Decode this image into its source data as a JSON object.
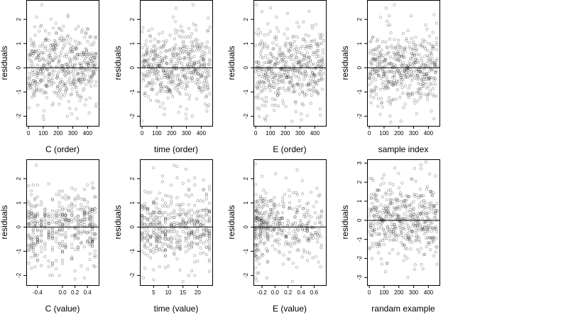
{
  "figure": {
    "title": ""
  },
  "chart_data": [
    {
      "type": "scatter",
      "id": "p1",
      "xlabel": "C (order)",
      "ylabel": "residuals",
      "xlim": [
        -15,
        475
      ],
      "ylim": [
        -2.4,
        2.8
      ],
      "xticks": [
        0,
        100,
        200,
        300,
        400
      ],
      "xtick_labels": [
        "0",
        "100",
        "200",
        "300",
        "400"
      ],
      "yticks": [
        -2,
        -1,
        0,
        1,
        2
      ],
      "ytick_labels": [
        "-2",
        "-1",
        "0",
        "1",
        "2"
      ],
      "reference_line_y": 0,
      "series": [
        {
          "n": 460,
          "x_range": [
            0,
            460
          ],
          "y_sd": 0.75,
          "seed": 11,
          "pattern": "order",
          "points": [
            [
              90,
              2.6
            ],
            [
              55,
              2.1
            ],
            [
              30,
              0.7
            ],
            [
              35,
              0.6
            ],
            [
              40,
              0.65
            ],
            [
              100,
              -2.0
            ],
            [
              330,
              -2.1
            ],
            [
              455,
              -1.6
            ],
            [
              460,
              -1.5
            ],
            [
              320,
              1.6
            ],
            [
              385,
              1.45
            ]
          ]
        }
      ]
    },
    {
      "type": "scatter",
      "id": "p2",
      "xlabel": "time (order)",
      "ylabel": "residuals",
      "xlim": [
        -15,
        475
      ],
      "ylim": [
        -2.4,
        2.8
      ],
      "xticks": [
        0,
        100,
        200,
        300,
        400
      ],
      "xtick_labels": [
        "0",
        "100",
        "200",
        "300",
        "400"
      ],
      "yticks": [
        -2,
        -1,
        0,
        1,
        2
      ],
      "ytick_labels": [
        "-2",
        "-1",
        "0",
        "1",
        "2"
      ],
      "reference_line_y": 0,
      "series": [
        {
          "n": 460,
          "x_range": [
            0,
            460
          ],
          "y_sd": 0.75,
          "seed": 23,
          "pattern": "order",
          "points": [
            [
              345,
              2.6
            ],
            [
              210,
              2.1
            ],
            [
              0,
              -2.2
            ],
            [
              300,
              -2.1
            ],
            [
              340,
              -2.0
            ],
            [
              440,
              -1.6
            ],
            [
              115,
              1.4
            ]
          ]
        }
      ]
    },
    {
      "type": "scatter",
      "id": "p3",
      "xlabel": "E (order)",
      "ylabel": "residuals",
      "xlim": [
        -15,
        475
      ],
      "ylim": [
        -2.4,
        2.8
      ],
      "xticks": [
        0,
        100,
        200,
        300,
        400
      ],
      "xtick_labels": [
        "0",
        "100",
        "200",
        "300",
        "400"
      ],
      "yticks": [
        -2,
        -1,
        0,
        1,
        2
      ],
      "ytick_labels": [
        "-2",
        "-1",
        "0",
        "1",
        "2"
      ],
      "reference_line_y": 0,
      "series": [
        {
          "n": 460,
          "x_range": [
            0,
            460
          ],
          "y_sd": 0.8,
          "seed": 37,
          "pattern": "order",
          "points": [
            [
              5,
              2.6
            ],
            [
              140,
              2.1
            ],
            [
              60,
              -2.1
            ],
            [
              75,
              -2.0
            ],
            [
              25,
              -1.7
            ],
            [
              20,
              1.6
            ],
            [
              260,
              1.3
            ]
          ]
        }
      ]
    },
    {
      "type": "scatter",
      "id": "p4",
      "xlabel": "sample index",
      "ylabel": "residuals",
      "xlim": [
        -15,
        475
      ],
      "ylim": [
        -2.4,
        2.8
      ],
      "xticks": [
        0,
        100,
        200,
        300,
        400
      ],
      "xtick_labels": [
        "0",
        "100",
        "200",
        "300",
        "400"
      ],
      "yticks": [
        -2,
        -1,
        0,
        1,
        2
      ],
      "ytick_labels": [
        "-2",
        "-1",
        "0",
        "1",
        "2"
      ],
      "reference_line_y": 0,
      "series": [
        {
          "n": 460,
          "x_range": [
            0,
            460
          ],
          "y_sd": 0.75,
          "seed": 41,
          "pattern": "order",
          "points": [
            [
              170,
              2.6
            ],
            [
              135,
              2.15
            ],
            [
              215,
              -2.2
            ],
            [
              320,
              -1.9
            ],
            [
              5,
              0.6
            ],
            [
              10,
              0.7
            ],
            [
              390,
              1.6
            ]
          ]
        }
      ]
    },
    {
      "type": "scatter",
      "id": "p5",
      "xlabel": "C (value)",
      "ylabel": "residuals",
      "xlim": [
        -0.58,
        0.58
      ],
      "ylim": [
        -2.4,
        2.8
      ],
      "xticks": [
        -0.4,
        0.0,
        0.2,
        0.4
      ],
      "xtick_labels": [
        "-0.4",
        "0.0",
        "0.2",
        "0.4"
      ],
      "yticks": [
        -2,
        -1,
        0,
        1,
        2
      ],
      "ytick_labels": [
        "-2",
        "-1",
        "0",
        "1",
        "2"
      ],
      "reference_line_y": 0,
      "series": [
        {
          "n": 420,
          "y_sd": 0.75,
          "seed": 53,
          "pattern": "columns",
          "x_levels": [
            -0.54,
            -0.5,
            -0.47,
            -0.44,
            -0.4,
            -0.34,
            -0.28,
            -0.22,
            -0.16,
            -0.1,
            -0.05,
            0.0,
            0.05,
            0.1,
            0.15,
            0.2,
            0.25,
            0.3,
            0.35,
            0.4,
            0.44,
            0.48,
            0.52
          ],
          "points": [
            [
              -0.42,
              2.55
            ],
            [
              -0.5,
              -1.7
            ],
            [
              -0.2,
              -2.0
            ],
            [
              0.35,
              -2.1
            ],
            [
              0.5,
              -1.6
            ],
            [
              0.0,
              -1.5
            ],
            [
              0.5,
              1.6
            ]
          ]
        }
      ]
    },
    {
      "type": "scatter",
      "id": "p6",
      "xlabel": "time (value)",
      "ylabel": "residuals",
      "xlim": [
        0.3,
        25.0
      ],
      "ylim": [
        -2.4,
        2.8
      ],
      "xticks": [
        5,
        10,
        15,
        20
      ],
      "xtick_labels": [
        "5",
        "10",
        "15",
        "20"
      ],
      "yticks": [
        -2,
        -1,
        0,
        1,
        2
      ],
      "ytick_labels": [
        "-2",
        "-1",
        "0",
        "1",
        "2"
      ],
      "reference_line_y": 0,
      "series": [
        {
          "n": 440,
          "y_sd": 0.75,
          "seed": 67,
          "pattern": "columns",
          "x_levels": [
            1,
            2,
            3,
            4,
            5,
            6,
            7,
            8,
            9,
            10,
            11,
            12,
            13,
            14,
            15,
            16,
            17,
            18,
            19,
            20,
            21,
            22,
            23,
            24
          ],
          "points": [
            [
              12,
              2.55
            ],
            [
              1.5,
              -2.1
            ],
            [
              17,
              -2.0
            ],
            [
              19,
              -2.0
            ],
            [
              24,
              1.55
            ],
            [
              7,
              1.4
            ]
          ]
        }
      ]
    },
    {
      "type": "scatter",
      "id": "p7",
      "xlabel": "E (value)",
      "ylabel": "residuals",
      "xlim": [
        -0.33,
        0.78
      ],
      "ylim": [
        -2.4,
        2.8
      ],
      "xticks": [
        -0.2,
        0.0,
        0.2,
        0.4,
        0.6
      ],
      "xtick_labels": [
        "-0.2",
        "0.0",
        "0.2",
        "0.4",
        "0.6"
      ],
      "yticks": [
        -2,
        -1,
        0,
        1,
        2
      ],
      "ytick_labels": [
        "-2",
        "-1",
        "0",
        "1",
        "2"
      ],
      "reference_line_y": 0,
      "series": [
        {
          "n": 400,
          "y_sd": 0.75,
          "seed": 79,
          "pattern": "skewed",
          "x_range": [
            -0.31,
            0.72
          ],
          "points": [
            [
              -0.3,
              2.6
            ],
            [
              -0.2,
              2.1
            ],
            [
              -0.3,
              -2.1
            ],
            [
              -0.28,
              -2.2
            ],
            [
              -0.25,
              -1.9
            ],
            [
              0.7,
              -0.4
            ],
            [
              0.65,
              -0.3
            ]
          ]
        }
      ]
    },
    {
      "type": "scatter",
      "id": "p8",
      "xlabel": "randam example",
      "ylabel": "residuals",
      "xlim": [
        -15,
        475
      ],
      "ylim": [
        -3.4,
        3.2
      ],
      "xticks": [
        0,
        100,
        200,
        300,
        400
      ],
      "xtick_labels": [
        "0",
        "100",
        "200",
        "300",
        "400"
      ],
      "yticks": [
        -3,
        -2,
        -1,
        0,
        1,
        2,
        3
      ],
      "ytick_labels": [
        "-3",
        "-2",
        "-1",
        "0",
        "1",
        "2",
        "3"
      ],
      "reference_line_y": 0,
      "series": [
        {
          "n": 460,
          "x_range": [
            0,
            460
          ],
          "y_sd": 1.0,
          "seed": 97,
          "pattern": "order",
          "points": [
            [
              350,
              2.7
            ],
            [
              5,
              2.2
            ],
            [
              20,
              2.2
            ],
            [
              110,
              -2.7
            ],
            [
              260,
              -3.0
            ],
            [
              460,
              -2.3
            ]
          ]
        }
      ]
    }
  ]
}
